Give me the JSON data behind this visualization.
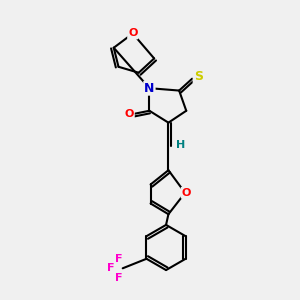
{
  "bg_color": "#f0f0f0",
  "atom_colors": {
    "N": "#0000cc",
    "O": "#ff0000",
    "S_yellow": "#cccc00",
    "S_ring": "#cccc00",
    "H": "#008080",
    "F": "#ff00cc",
    "C": "#000000"
  },
  "figsize": [
    3.0,
    3.0
  ],
  "dpi": 100
}
